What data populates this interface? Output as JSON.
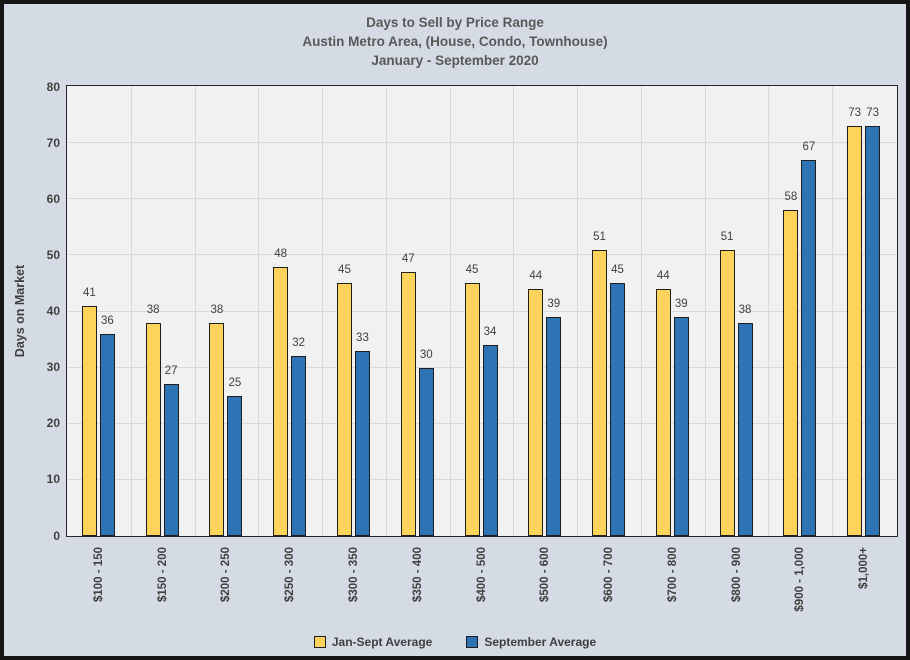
{
  "title": {
    "lines": [
      "Days to Sell by Price Range",
      "Austin Metro Area, (House, Condo, Townhouse)",
      "January - September 2020"
    ]
  },
  "chart_data": {
    "type": "bar",
    "title": "Days to Sell by Price Range",
    "subtitle": [
      "Austin Metro Area, (House, Condo, Townhouse)",
      "January - September 2020"
    ],
    "categories": [
      "$100 - 150",
      "$150 - 200",
      "$200 - 250",
      "$250 - 300",
      "$300 - 350",
      "$350 - 400",
      "$400 - 500",
      "$500 - 600",
      "$600 - 700",
      "$700 - 800",
      "$800 - 900",
      "$900 - 1,000",
      "$1,000+"
    ],
    "series": [
      {
        "name": "Jan-Sept Average",
        "color": "#FCD45C",
        "values": [
          41,
          38,
          38,
          48,
          45,
          47,
          45,
          44,
          51,
          44,
          51,
          58,
          73
        ]
      },
      {
        "name": "September Average",
        "color": "#2E74B5",
        "values": [
          36,
          27,
          25,
          32,
          33,
          30,
          34,
          39,
          45,
          39,
          38,
          67,
          73
        ]
      }
    ],
    "xlabel": "",
    "ylabel": "Days on Market",
    "ylim": [
      0,
      80
    ],
    "yticks": [
      0,
      10,
      20,
      30,
      40,
      50,
      60,
      70,
      80
    ],
    "grid": {
      "horizontal_major": true,
      "vertical_category_boundaries": true
    },
    "legend_position": "bottom",
    "data_labels": "outside-end"
  },
  "colors": {
    "canvas_background": "#D5DBE4",
    "frame_border": "#161616",
    "plot_background": "#F1F1F1",
    "plot_border": "#262626",
    "gridline": "#D9D9D9",
    "bar_border": "#1E1E1E",
    "series_1": "#FCD45C",
    "series_2": "#2E74B5",
    "title_text": "#595959",
    "axis_text": "#3F3F3F",
    "value_label_text": "#404040"
  }
}
